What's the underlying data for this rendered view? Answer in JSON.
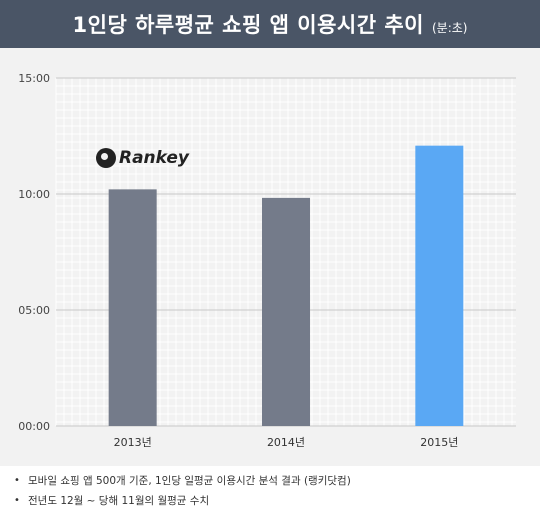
{
  "header": {
    "title": "1인당 하루평균 쇼핑 앱 이용시간 추이",
    "unit": "(분:초)"
  },
  "logo": {
    "name": "Rankey"
  },
  "chart_data": {
    "type": "bar",
    "categories": [
      "2013년",
      "2014년",
      "2015년"
    ],
    "values": [
      612,
      590,
      725
    ],
    "value_labels": [
      "10:12",
      "09:50",
      "12:05"
    ],
    "yticks": [
      0,
      300,
      600,
      900
    ],
    "ytick_labels": [
      "00:00",
      "05:00",
      "10:00",
      "15:00"
    ],
    "ylim": [
      0,
      900
    ],
    "colors": [
      "#747b8a",
      "#747b8a",
      "#5aa8f4"
    ],
    "grid": true
  },
  "notes": [
    "모바일 쇼핑 앱 500개 기준, 1인당 일평균 이용시간 분석 결과 (랭키닷컴)",
    "전년도 12월 ~ 당해 11월의 월평균 수치"
  ]
}
